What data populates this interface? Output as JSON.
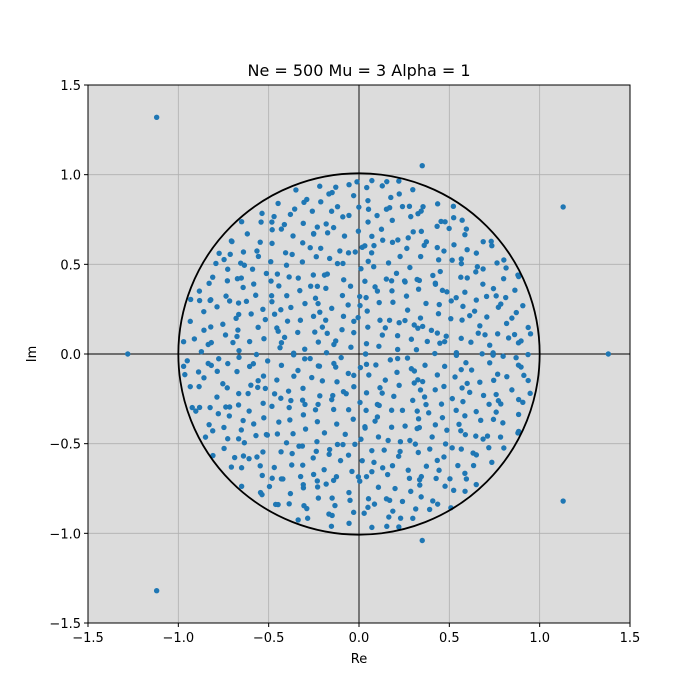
{
  "chart_data": {
    "type": "scatter",
    "title": "Ne = 500 Mu = 3 Alpha = 1",
    "xlabel": "Re",
    "ylabel": "Im",
    "xlim": [
      -1.5,
      1.5
    ],
    "ylim": [
      -1.5,
      1.5
    ],
    "x_ticks": [
      -1.5,
      -1.0,
      -0.5,
      0.0,
      0.5,
      1.0,
      1.5
    ],
    "y_ticks": [
      -1.5,
      -1.0,
      -0.5,
      0.0,
      0.5,
      1.0,
      1.5
    ],
    "x_tick_labels": [
      "−1.5",
      "−1.0",
      "−0.5",
      "0.0",
      "0.5",
      "1.0",
      "1.5"
    ],
    "y_tick_labels": [
      "−1.5",
      "−1.0",
      "−0.5",
      "0.0",
      "0.5",
      "1.0",
      "1.5"
    ],
    "grid": true,
    "background_color": "#dcdcdc",
    "point_color": "#1f77b4",
    "circle": {
      "center": [
        0,
        0
      ],
      "radius": 1.0,
      "color": "#000000"
    },
    "reference_lines": {
      "x": 0,
      "y": 0
    },
    "points_visible_outliers": [
      {
        "x": -1.12,
        "y": 1.32
      },
      {
        "x": -1.12,
        "y": -1.32
      },
      {
        "x": 1.13,
        "y": 0.82
      },
      {
        "x": 1.13,
        "y": -0.82
      },
      {
        "x": -1.28,
        "y": 0.0
      },
      {
        "x": 1.38,
        "y": 0.0
      },
      {
        "x": 0.35,
        "y": 1.05
      },
      {
        "x": 0.35,
        "y": -1.04
      }
    ],
    "bulk_point_count": 500
  }
}
